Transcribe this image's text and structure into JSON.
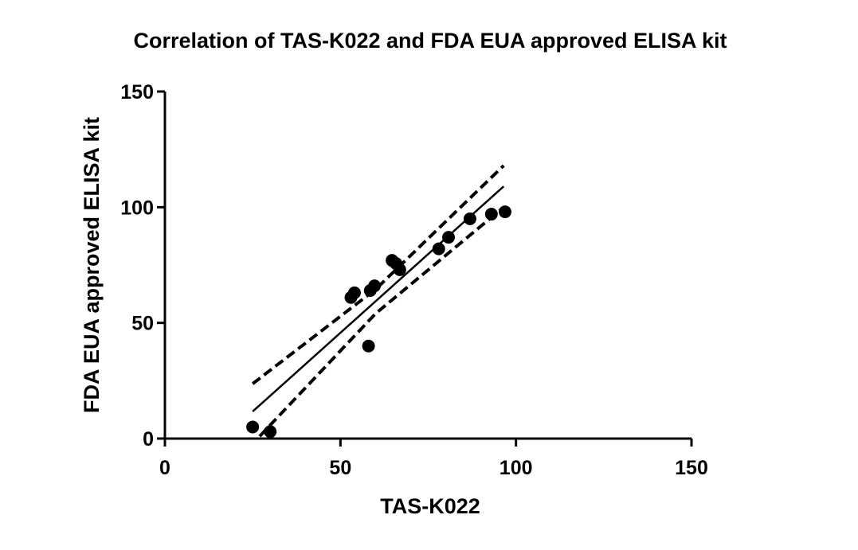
{
  "chart_data": {
    "type": "scatter",
    "title": "Correlation of TAS-K022 and FDA EUA approved ELISA kit",
    "x_label": "TAS-K022",
    "y_label": "FDA EUA approved ELISA kit",
    "x": [
      25,
      30,
      53,
      54,
      58,
      58.5,
      59.7,
      64.7,
      65.8,
      66.9,
      78,
      80.8,
      86.9,
      93,
      96.9
    ],
    "y": [
      5,
      3,
      61,
      63,
      40,
      64,
      66,
      77,
      75.7,
      73,
      82,
      87,
      95,
      97,
      98
    ],
    "color": "#000000",
    "fit": {
      "x": [
        25,
        96.5
      ],
      "values": [
        11.7,
        109
      ]
    },
    "ci_upper": {
      "x": [
        25,
        60,
        96.5
      ],
      "values": [
        23.7,
        64.5,
        118
      ]
    },
    "ci_lower": {
      "x": [
        27,
        60,
        96.5
      ],
      "values": [
        1,
        54,
        100
      ]
    },
    "xlim": [
      0,
      150
    ],
    "ylim": [
      0,
      150
    ],
    "xticks": [
      0,
      50,
      100,
      150
    ],
    "yticks": [
      0,
      50,
      100,
      150
    ]
  }
}
